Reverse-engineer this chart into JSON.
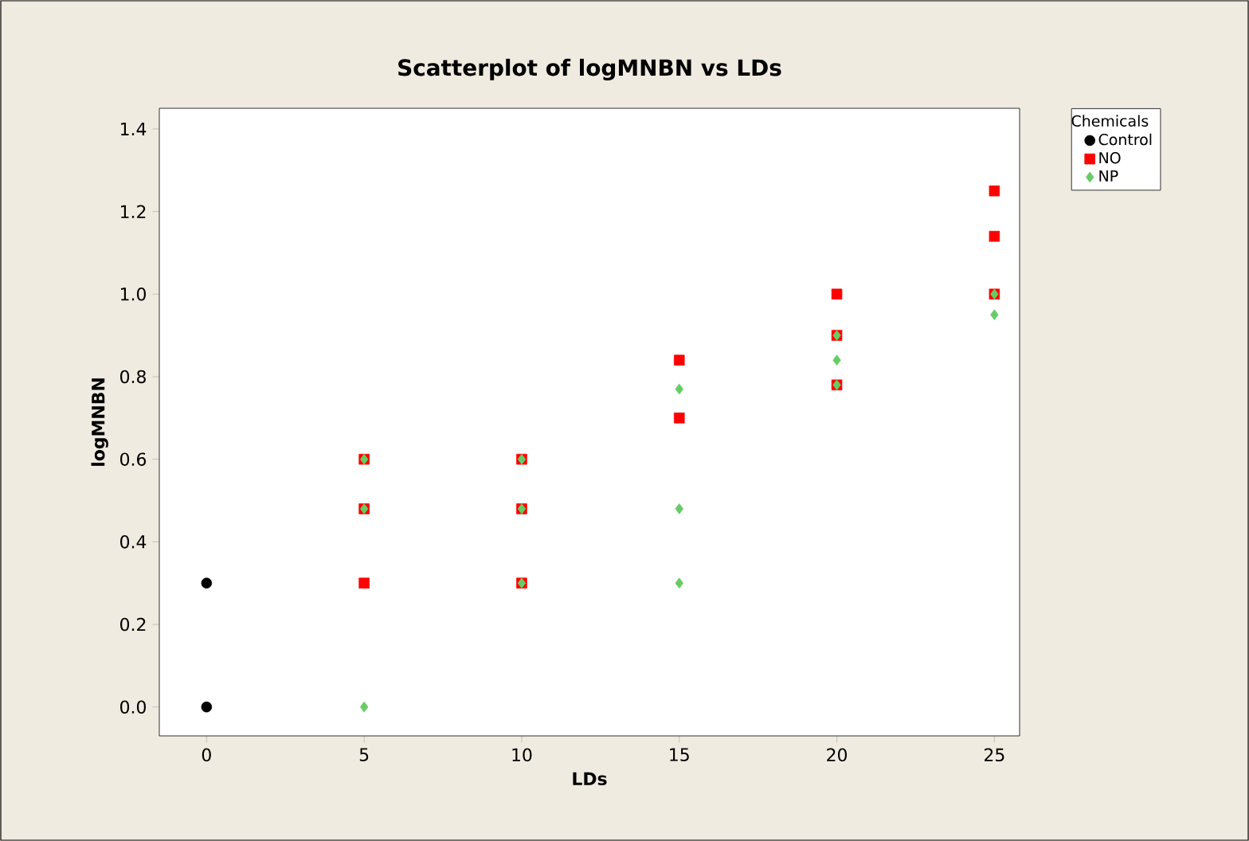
{
  "chart_data": {
    "type": "scatter",
    "title": "Scatterplot of logMNBN vs LDs",
    "xlabel": "LDs",
    "ylabel": "logMNBN",
    "legend_title": "Chemicals",
    "legend": "top right",
    "grid": false,
    "xlim": [
      -1.5,
      25.8
    ],
    "ylim": [
      -0.07,
      1.45
    ],
    "xticks": [
      0,
      5,
      10,
      15,
      20,
      25
    ],
    "yticks": [
      {
        "value": 0,
        "label": "0.0"
      },
      {
        "value": 0.2,
        "label": "0.2"
      },
      {
        "value": 0.4,
        "label": "0.4"
      },
      {
        "value": 0.6,
        "label": "0.6"
      },
      {
        "value": 0.8,
        "label": "0.8"
      },
      {
        "value": 1.0,
        "label": "1.0"
      },
      {
        "value": 1.2,
        "label": "1.2"
      },
      {
        "value": 1.4,
        "label": "1.4"
      }
    ],
    "series": [
      {
        "name": "Control",
        "color": "#000000",
        "marker": "circle",
        "x": [
          0,
          0
        ],
        "values": [
          0.3,
          0.0
        ]
      },
      {
        "name": "NO",
        "color": "#ff0000",
        "marker": "square",
        "x": [
          5,
          5,
          5,
          10,
          10,
          10,
          15,
          15,
          20,
          20,
          20,
          25,
          25,
          25
        ],
        "values": [
          0.6,
          0.48,
          0.3,
          0.6,
          0.48,
          0.3,
          0.84,
          0.7,
          1.0,
          0.9,
          0.78,
          1.25,
          1.14,
          1.0
        ]
      },
      {
        "name": "NP",
        "color": "#66cc66",
        "marker": "diamond",
        "x": [
          5,
          5,
          5,
          10,
          10,
          10,
          15,
          15,
          15,
          20,
          20,
          20,
          25,
          25
        ],
        "values": [
          0.6,
          0.48,
          0.0,
          0.6,
          0.48,
          0.3,
          0.77,
          0.48,
          0.3,
          0.9,
          0.84,
          0.78,
          1.0,
          0.95
        ]
      }
    ]
  }
}
